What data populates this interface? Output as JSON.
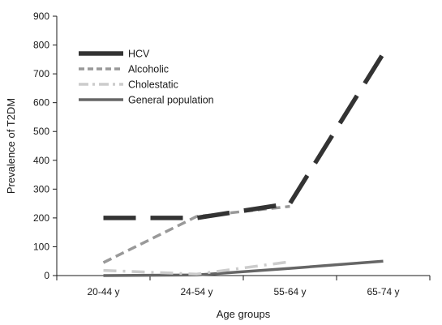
{
  "chart_data": {
    "type": "line",
    "title": "",
    "xlabel": "Age groups",
    "ylabel": "Prevalence of T2DM",
    "categories": [
      "20-44 y",
      "24-54 y",
      "55-64 y",
      "65-74 y"
    ],
    "ylim": [
      0,
      900
    ],
    "yticks": [
      0,
      100,
      200,
      300,
      400,
      500,
      600,
      700,
      800,
      900
    ],
    "grid": false,
    "legend_position": "top-left",
    "series": [
      {
        "name": "HCV",
        "values": [
          200,
          200,
          250,
          770
        ],
        "color": "#333333",
        "style": "long-dash"
      },
      {
        "name": "Alcoholic",
        "values": [
          45,
          205,
          240,
          null
        ],
        "color": "#999999",
        "style": "dash"
      },
      {
        "name": "Cholestatic",
        "values": [
          18,
          5,
          48,
          null
        ],
        "color": "#cccccc",
        "style": "dash-dot"
      },
      {
        "name": "General population",
        "values": [
          0,
          2,
          25,
          50
        ],
        "color": "#666666",
        "style": "solid"
      }
    ]
  }
}
